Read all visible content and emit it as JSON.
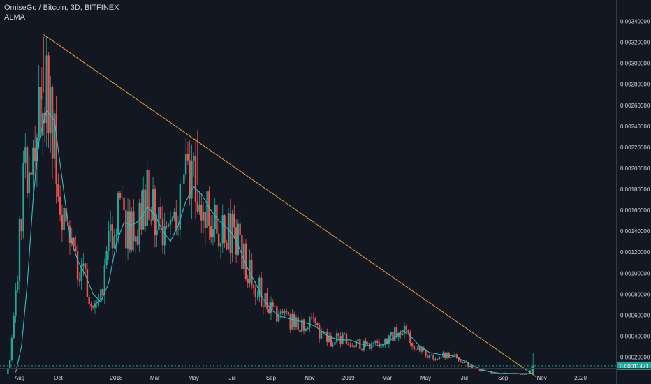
{
  "header": {
    "symbol": "OmiseGo / Bitcoin, 3D, BITFINEX",
    "indicator": "ALMA"
  },
  "colors": {
    "background": "#131722",
    "grid": "#1c2030",
    "axis_line": "#363a45",
    "axis_text": "#d1d4dc",
    "candle_up": "#26a69a",
    "candle_down": "#ef5350",
    "alma": "#3cb8c0",
    "trendline": "#e8a33d",
    "last_price_bg": "#26a69a"
  },
  "chart_data": {
    "type": "candlestick",
    "title": "OmiseGo / Bitcoin, 3D, BITFINEX",
    "indicator": "ALMA",
    "x_ticks": [
      "Aug",
      "Oct",
      "2018",
      "Mar",
      "May",
      "Jul",
      "Sep",
      "Nov",
      "2019",
      "Mar",
      "May",
      "Jul",
      "Sep",
      "Nov",
      "2020"
    ],
    "x_tick_months": [
      7.5,
      9.5,
      12.5,
      14.5,
      16.5,
      18.5,
      20.5,
      22.5,
      24.5,
      26.5,
      28.5,
      30.5,
      32.5,
      34.5,
      36.5
    ],
    "y_ticks": [
      "0.00020000",
      "0.00040000",
      "0.00060000",
      "0.00080000",
      "0.00100000",
      "0.00120000",
      "0.00140000",
      "0.00160000",
      "0.00180000",
      "0.00200000",
      "0.00220000",
      "0.00240000",
      "0.00260000",
      "0.00280000",
      "0.00300000",
      "0.00320000",
      "0.00340000"
    ],
    "ylim": [
      1e-05,
      0.0035
    ],
    "last_price": "0.00011471",
    "last_price_value": 0.00011471,
    "price_path": [
      [
        6.85,
        4e-05
      ],
      [
        7.0,
        0.00012
      ],
      [
        7.2,
        0.0004
      ],
      [
        7.4,
        0.0009
      ],
      [
        7.6,
        0.00145
      ],
      [
        7.8,
        0.0019
      ],
      [
        8.0,
        0.00215
      ],
      [
        8.2,
        0.00228
      ],
      [
        8.4,
        0.0025
      ],
      [
        8.6,
        0.00262
      ],
      [
        8.8,
        0.00275
      ],
      [
        9.0,
        0.00265
      ],
      [
        9.2,
        0.0024
      ],
      [
        9.5,
        0.00195
      ],
      [
        9.8,
        0.0015
      ],
      [
        10.1,
        0.0012
      ],
      [
        10.4,
        0.0011
      ],
      [
        10.7,
        0.00102
      ],
      [
        11.0,
        0.0009
      ],
      [
        11.3,
        0.00075
      ],
      [
        11.5,
        0.00062
      ],
      [
        11.7,
        0.0007
      ],
      [
        11.9,
        0.0009
      ],
      [
        12.1,
        0.00118
      ],
      [
        12.3,
        0.0014
      ],
      [
        12.5,
        0.0016
      ],
      [
        12.8,
        0.00152
      ],
      [
        13.2,
        0.0014
      ],
      [
        13.6,
        0.00148
      ],
      [
        14.0,
        0.00168
      ],
      [
        14.3,
        0.00176
      ],
      [
        14.6,
        0.00155
      ],
      [
        14.9,
        0.0014
      ],
      [
        15.2,
        0.00126
      ],
      [
        15.5,
        0.0014
      ],
      [
        15.8,
        0.00162
      ],
      [
        16.1,
        0.00182
      ],
      [
        16.4,
        0.00195
      ],
      [
        16.8,
        0.0018
      ],
      [
        17.2,
        0.00165
      ],
      [
        17.6,
        0.0015
      ],
      [
        18.0,
        0.00145
      ],
      [
        18.4,
        0.0014
      ],
      [
        18.8,
        0.0013
      ],
      [
        19.2,
        0.0011
      ],
      [
        19.6,
        0.00098
      ],
      [
        20.0,
        0.00082
      ],
      [
        20.4,
        0.0007
      ],
      [
        20.8,
        0.00058
      ],
      [
        21.2,
        0.00055
      ],
      [
        21.6,
        0.00055
      ],
      [
        22.0,
        0.0005
      ],
      [
        22.4,
        0.00051
      ],
      [
        22.8,
        0.00049
      ],
      [
        23.2,
        0.0004
      ],
      [
        23.6,
        0.00035
      ],
      [
        24.0,
        0.00037
      ],
      [
        24.4,
        0.00038
      ],
      [
        24.8,
        0.00034
      ],
      [
        25.2,
        0.00031
      ],
      [
        25.6,
        0.0003
      ],
      [
        26.0,
        0.00031
      ],
      [
        26.4,
        0.00034
      ],
      [
        26.8,
        0.0004
      ],
      [
        27.2,
        0.00047
      ],
      [
        27.6,
        0.0004
      ],
      [
        28.0,
        0.0003
      ],
      [
        28.4,
        0.00025
      ],
      [
        28.8,
        0.0002
      ],
      [
        29.2,
        0.00021
      ],
      [
        29.6,
        0.00022
      ],
      [
        30.0,
        0.0002
      ],
      [
        30.4,
        0.00016
      ],
      [
        30.8,
        0.00011
      ],
      [
        31.2,
        8e-05
      ],
      [
        31.6,
        6e-05
      ],
      [
        32.0,
        5e-05
      ],
      [
        32.4,
        4e-05
      ],
      [
        32.8,
        4e-05
      ],
      [
        33.2,
        4e-05
      ],
      [
        33.6,
        3e-05
      ],
      [
        33.9,
        4e-05
      ],
      [
        34.05,
        0.00011471
      ]
    ],
    "spikes": [
      {
        "month": 8.75,
        "value": 0.00325
      },
      {
        "month": 8.65,
        "value": 0.00296
      },
      {
        "month": 16.7,
        "value": 0.00236
      }
    ],
    "alma_path": [
      [
        7.3,
        5e-05
      ],
      [
        7.6,
        0.0003
      ],
      [
        7.9,
        0.0009
      ],
      [
        8.2,
        0.0017
      ],
      [
        8.5,
        0.00225
      ],
      [
        8.9,
        0.00255
      ],
      [
        9.3,
        0.00245
      ],
      [
        9.7,
        0.0019
      ],
      [
        10.1,
        0.00135
      ],
      [
        10.5,
        0.00112
      ],
      [
        10.9,
        0.00098
      ],
      [
        11.3,
        0.0008
      ],
      [
        11.7,
        0.00072
      ],
      [
        12.1,
        0.0009
      ],
      [
        12.5,
        0.00128
      ],
      [
        12.9,
        0.00148
      ],
      [
        13.3,
        0.00145
      ],
      [
        13.7,
        0.0015
      ],
      [
        14.1,
        0.00163
      ],
      [
        14.5,
        0.00155
      ],
      [
        14.9,
        0.0014
      ],
      [
        15.3,
        0.0013
      ],
      [
        15.7,
        0.00145
      ],
      [
        16.1,
        0.00168
      ],
      [
        16.5,
        0.00182
      ],
      [
        16.9,
        0.00175
      ],
      [
        17.3,
        0.00162
      ],
      [
        17.7,
        0.00152
      ],
      [
        18.1,
        0.00145
      ],
      [
        18.5,
        0.00137
      ],
      [
        18.9,
        0.00122
      ],
      [
        19.3,
        0.00104
      ],
      [
        19.7,
        0.0009
      ],
      [
        20.1,
        0.00075
      ],
      [
        20.5,
        0.00065
      ],
      [
        20.9,
        0.00059
      ],
      [
        21.5,
        0.00056
      ],
      [
        22.2,
        0.00053
      ],
      [
        22.8,
        0.00049
      ],
      [
        23.4,
        0.0004
      ],
      [
        24.0,
        0.00036
      ],
      [
        24.6,
        0.00036
      ],
      [
        25.2,
        0.00032
      ],
      [
        25.8,
        0.0003
      ],
      [
        26.4,
        0.00032
      ],
      [
        27.0,
        0.0004
      ],
      [
        27.3,
        0.00045
      ],
      [
        27.7,
        0.0004
      ],
      [
        28.2,
        0.0003
      ],
      [
        28.7,
        0.00024
      ],
      [
        29.3,
        0.00022
      ],
      [
        29.9,
        0.00021
      ],
      [
        30.5,
        0.00016
      ],
      [
        31.1,
        0.0001
      ],
      [
        31.7,
        6e-05
      ],
      [
        32.4,
        4e-05
      ],
      [
        33.2,
        4e-05
      ],
      [
        33.9,
        4e-05
      ]
    ],
    "trendline": [
      [
        8.75,
        0.00327
      ],
      [
        34.2,
        1e-05
      ]
    ],
    "grid": false
  }
}
